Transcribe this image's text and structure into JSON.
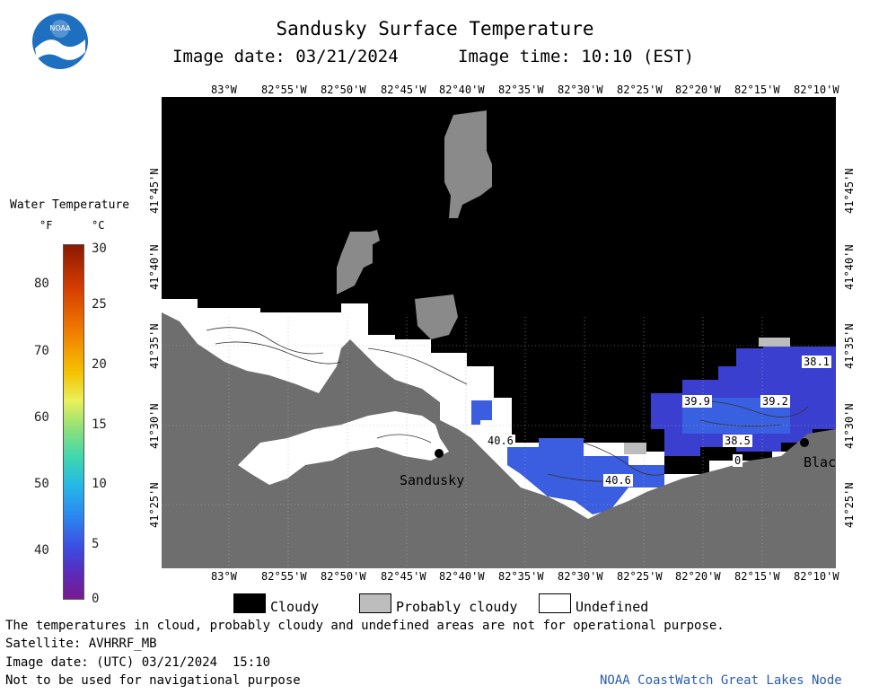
{
  "header": {
    "title": "Sandusky Surface Temperature",
    "image_date": "Image date: 03/21/2024",
    "image_time": "Image time: 10:10 (EST)"
  },
  "legend": {
    "title": "Water Temperature",
    "unit_f": "°F",
    "unit_c": "°C",
    "f_ticks": [
      "80",
      "70",
      "60",
      "50",
      "40"
    ],
    "c_ticks": [
      "30",
      "25",
      "20",
      "15",
      "10",
      "5",
      "0"
    ]
  },
  "axes": {
    "lon_labels": [
      "83°W",
      "82°55'W",
      "82°50'W",
      "82°45'W",
      "82°40'W",
      "82°35'W",
      "82°30'W",
      "82°25'W",
      "82°20'W",
      "82°15'W",
      "82°10'W"
    ],
    "lat_labels": [
      "41°45'N",
      "41°40'N",
      "41°35'N",
      "41°30'N",
      "41°25'N"
    ]
  },
  "map": {
    "places": [
      "Sandusky",
      "Blac"
    ],
    "temp_labels": [
      "38.1",
      "39.9",
      "39.2",
      "38.5",
      "40.6",
      "40.6",
      "0"
    ]
  },
  "key": {
    "cloudy": "Cloudy",
    "probably_cloudy": "Probably cloudy",
    "undefined": "Undefined"
  },
  "footer": {
    "disclaimer": "The temperatures in cloud, probably cloudy and undefined areas are not for operational purpose.",
    "satellite": "Satellite: AVHRRF_MB",
    "utc_date": "Image date: (UTC) 03/21/2024  15:10",
    "nav_warning": "Not to be used for navigational purpose",
    "credit": "NOAA CoastWatch Great Lakes Node"
  },
  "colors": {
    "cloudy": "#000000",
    "probably_cloudy": "#bdbdbd",
    "land": "#6e6e6e",
    "water_warm": "#3b5de0",
    "water_cool": "#3a3fd0",
    "credit": "#2a5db0"
  }
}
